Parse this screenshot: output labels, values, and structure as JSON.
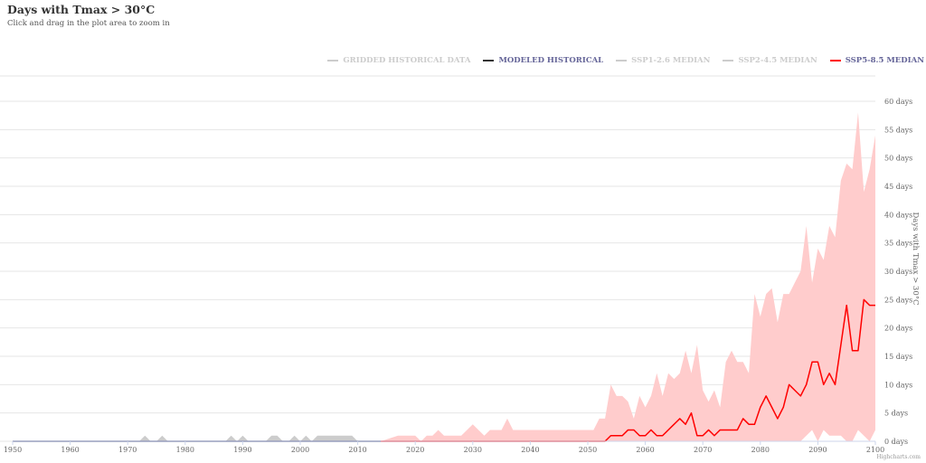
{
  "title": "Days with Tmax > 30°C",
  "subtitle": "Click and drag in the plot area to zoom in",
  "credits": "Highcharts.com",
  "legend": [
    {
      "label": "GRIDDED HISTORICAL DATA",
      "color": "#cccccc",
      "text_color": "#cccccc"
    },
    {
      "label": "MODELED HISTORICAL",
      "color": "#333333",
      "text_color": "#666699"
    },
    {
      "label": "SSP1-2.6 MEDIAN",
      "color": "#cccccc",
      "text_color": "#cccccc"
    },
    {
      "label": "SSP2-4.5 MEDIAN",
      "color": "#cccccc",
      "text_color": "#cccccc"
    },
    {
      "label": "SSP5-8.5 MEDIAN",
      "color": "#ff0000",
      "text_color": "#666699"
    }
  ],
  "chart_data": {
    "type": "line",
    "title": "Days with Tmax > 30°C",
    "ylabel": "Days with Tmax > 30°C",
    "xlim": [
      1950,
      2100
    ],
    "ylim": [
      0,
      60
    ],
    "x_ticks": [
      "1950",
      "1960",
      "1970",
      "1980",
      "1990",
      "2000",
      "2010",
      "2020",
      "2030",
      "2040",
      "2050",
      "2060",
      "2070",
      "2080",
      "2090",
      "2100"
    ],
    "y_ticks": [
      "0 days",
      "5 days",
      "10 days",
      "15 days",
      "20 days",
      "25 days",
      "30 days",
      "35 days",
      "40 days",
      "45 days",
      "50 days",
      "55 days",
      "60 days"
    ],
    "y_tick_values": [
      0,
      5,
      10,
      15,
      20,
      25,
      30,
      35,
      40,
      45,
      50,
      55,
      60
    ],
    "grid": true,
    "legend_position": "top-right",
    "colors": {
      "gridded": "#cccccc",
      "modeled": "#333366",
      "ssp585": "#ff0000",
      "ssp585_band": "#ffcccc",
      "grid": "#e6e6e6"
    },
    "gridded_historical": {
      "x": [
        1950,
        1972,
        1973,
        1974,
        1975,
        1976,
        1977,
        1987,
        1988,
        1989,
        1990,
        1991,
        1992,
        1994,
        1995,
        1996,
        1997,
        1998,
        1999,
        2000,
        2001,
        2002,
        2003,
        2004,
        2005,
        2006,
        2007,
        2008,
        2009,
        2010,
        2014
      ],
      "y": [
        0,
        0,
        1,
        0,
        0,
        1,
        0,
        0,
        1,
        0,
        1,
        0,
        0,
        0,
        1,
        1,
        0,
        0,
        1,
        0,
        1,
        0,
        1,
        1,
        1,
        1,
        1,
        1,
        1,
        0,
        0
      ]
    },
    "modeled_historical": {
      "x": [
        1950,
        2014
      ],
      "y": [
        0,
        0
      ]
    },
    "ssp585_median": {
      "x": [
        2014,
        2053,
        2054,
        2055,
        2056,
        2057,
        2058,
        2059,
        2060,
        2061,
        2062,
        2063,
        2064,
        2065,
        2066,
        2067,
        2068,
        2069,
        2070,
        2071,
        2072,
        2073,
        2074,
        2075,
        2076,
        2077,
        2078,
        2079,
        2080,
        2081,
        2082,
        2083,
        2084,
        2085,
        2086,
        2087,
        2088,
        2089,
        2090,
        2091,
        2092,
        2093,
        2094,
        2095,
        2096,
        2097,
        2098,
        2099,
        2100
      ],
      "y": [
        0,
        0,
        1,
        1,
        1,
        2,
        2,
        1,
        1,
        2,
        1,
        1,
        2,
        3,
        4,
        3,
        5,
        1,
        1,
        2,
        1,
        2,
        2,
        2,
        2,
        4,
        3,
        3,
        6,
        8,
        6,
        4,
        6,
        10,
        9,
        8,
        10,
        14,
        14,
        10,
        12,
        10,
        17,
        24,
        16,
        16,
        25,
        24,
        24
      ]
    },
    "ssp585_range": {
      "x": [
        2014,
        2017,
        2018,
        2019,
        2020,
        2021,
        2022,
        2023,
        2024,
        2025,
        2026,
        2027,
        2028,
        2029,
        2030,
        2031,
        2032,
        2033,
        2034,
        2035,
        2036,
        2037,
        2038,
        2039,
        2040,
        2041,
        2042,
        2043,
        2044,
        2045,
        2046,
        2047,
        2048,
        2049,
        2050,
        2051,
        2052,
        2053,
        2054,
        2055,
        2056,
        2057,
        2058,
        2059,
        2060,
        2061,
        2062,
        2063,
        2064,
        2065,
        2066,
        2067,
        2068,
        2069,
        2070,
        2071,
        2072,
        2073,
        2074,
        2075,
        2076,
        2077,
        2078,
        2079,
        2080,
        2081,
        2082,
        2083,
        2084,
        2085,
        2086,
        2087,
        2088,
        2089,
        2090,
        2091,
        2092,
        2093,
        2094,
        2095,
        2096,
        2097,
        2098,
        2099,
        2100
      ],
      "low": [
        0,
        0,
        0,
        0,
        0,
        0,
        0,
        0,
        0,
        0,
        0,
        0,
        0,
        0,
        0,
        0,
        0,
        0,
        0,
        0,
        0,
        0,
        0,
        0,
        0,
        0,
        0,
        0,
        0,
        0,
        0,
        0,
        0,
        0,
        0,
        0,
        0,
        0,
        0,
        0,
        0,
        0,
        0,
        0,
        0,
        0,
        0,
        0,
        0,
        0,
        0,
        0,
        0,
        0,
        0,
        0,
        0,
        0,
        0,
        0,
        0,
        0,
        0,
        0,
        0,
        0,
        0,
        0,
        0,
        0,
        0,
        0,
        1,
        2,
        0,
        2,
        1,
        1,
        1,
        0,
        0,
        2,
        1,
        0,
        2
      ],
      "high": [
        0,
        1,
        1,
        1,
        1,
        0,
        1,
        1,
        2,
        1,
        1,
        1,
        1,
        2,
        3,
        2,
        1,
        2,
        2,
        2,
        4,
        2,
        2,
        2,
        2,
        2,
        2,
        2,
        2,
        2,
        2,
        2,
        2,
        2,
        2,
        2,
        4,
        4,
        10,
        8,
        8,
        7,
        4,
        8,
        6,
        8,
        12,
        8,
        12,
        11,
        12,
        16,
        12,
        17,
        9,
        7,
        9,
        6,
        14,
        16,
        14,
        14,
        12,
        26,
        22,
        26,
        27,
        21,
        26,
        26,
        28,
        30,
        38,
        28,
        34,
        32,
        38,
        36,
        46,
        49,
        48,
        58,
        44,
        48,
        54
      ]
    }
  }
}
